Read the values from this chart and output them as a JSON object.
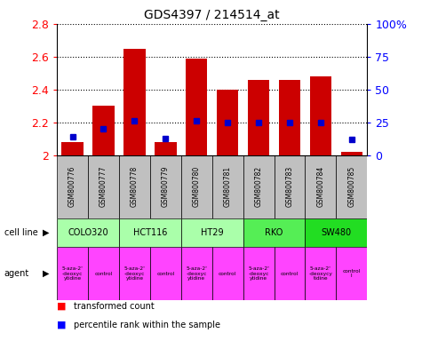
{
  "title": "GDS4397 / 214514_at",
  "samples": [
    "GSM800776",
    "GSM800777",
    "GSM800778",
    "GSM800779",
    "GSM800780",
    "GSM800781",
    "GSM800782",
    "GSM800783",
    "GSM800784",
    "GSM800785"
  ],
  "transformed_count": [
    2.08,
    2.3,
    2.65,
    2.08,
    2.59,
    2.4,
    2.46,
    2.46,
    2.48,
    2.02
  ],
  "percentile_rank": [
    0.14,
    0.2,
    0.26,
    0.13,
    0.26,
    0.25,
    0.25,
    0.25,
    0.25,
    0.12
  ],
  "y_min": 2.0,
  "y_max": 2.8,
  "y_ticks": [
    2.0,
    2.2,
    2.4,
    2.6,
    2.8
  ],
  "y_right_labels": [
    "0",
    "25",
    "50",
    "75",
    "100%"
  ],
  "bar_color": "#cc0000",
  "dot_color": "#0000cc",
  "bar_width": 0.7,
  "dot_size": 5,
  "legend_red": "transformed count",
  "legend_blue": "percentile rank within the sample",
  "cell_line_label": "cell line",
  "agent_label": "agent",
  "drug_color": "#ff44ff",
  "control_color": "#ff44ff",
  "sample_bg_color": "#c0c0c0",
  "cell_data": [
    {
      "name": "COLO320",
      "cols": [
        0,
        1
      ],
      "color": "#aaffaa"
    },
    {
      "name": "HCT116",
      "cols": [
        2,
        3
      ],
      "color": "#aaffaa"
    },
    {
      "name": "HT29",
      "cols": [
        4,
        5
      ],
      "color": "#aaffaa"
    },
    {
      "name": "RKO",
      "cols": [
        6,
        7
      ],
      "color": "#55ee55"
    },
    {
      "name": "SW480",
      "cols": [
        8,
        9
      ],
      "color": "#22dd22"
    }
  ],
  "agent_data": [
    {
      "col": 0,
      "name": "5-aza-2'\n-deoxyc\nytidine",
      "color": "#ff44ff"
    },
    {
      "col": 1,
      "name": "control",
      "color": "#ff44ff"
    },
    {
      "col": 2,
      "name": "5-aza-2'\n-deoxyc\nytidine",
      "color": "#ff44ff"
    },
    {
      "col": 3,
      "name": "control",
      "color": "#ff44ff"
    },
    {
      "col": 4,
      "name": "5-aza-2'\n-deoxyc\nytidine",
      "color": "#ff44ff"
    },
    {
      "col": 5,
      "name": "control",
      "color": "#ff44ff"
    },
    {
      "col": 6,
      "name": "5-aza-2'\n-deoxyc\nytidine",
      "color": "#ff44ff"
    },
    {
      "col": 7,
      "name": "control",
      "color": "#ff44ff"
    },
    {
      "col": 8,
      "name": "5-aza-2'\n-deoxycy\ntidine",
      "color": "#ff44ff"
    },
    {
      "col": 9,
      "name": "control\nl",
      "color": "#ff44ff"
    }
  ]
}
